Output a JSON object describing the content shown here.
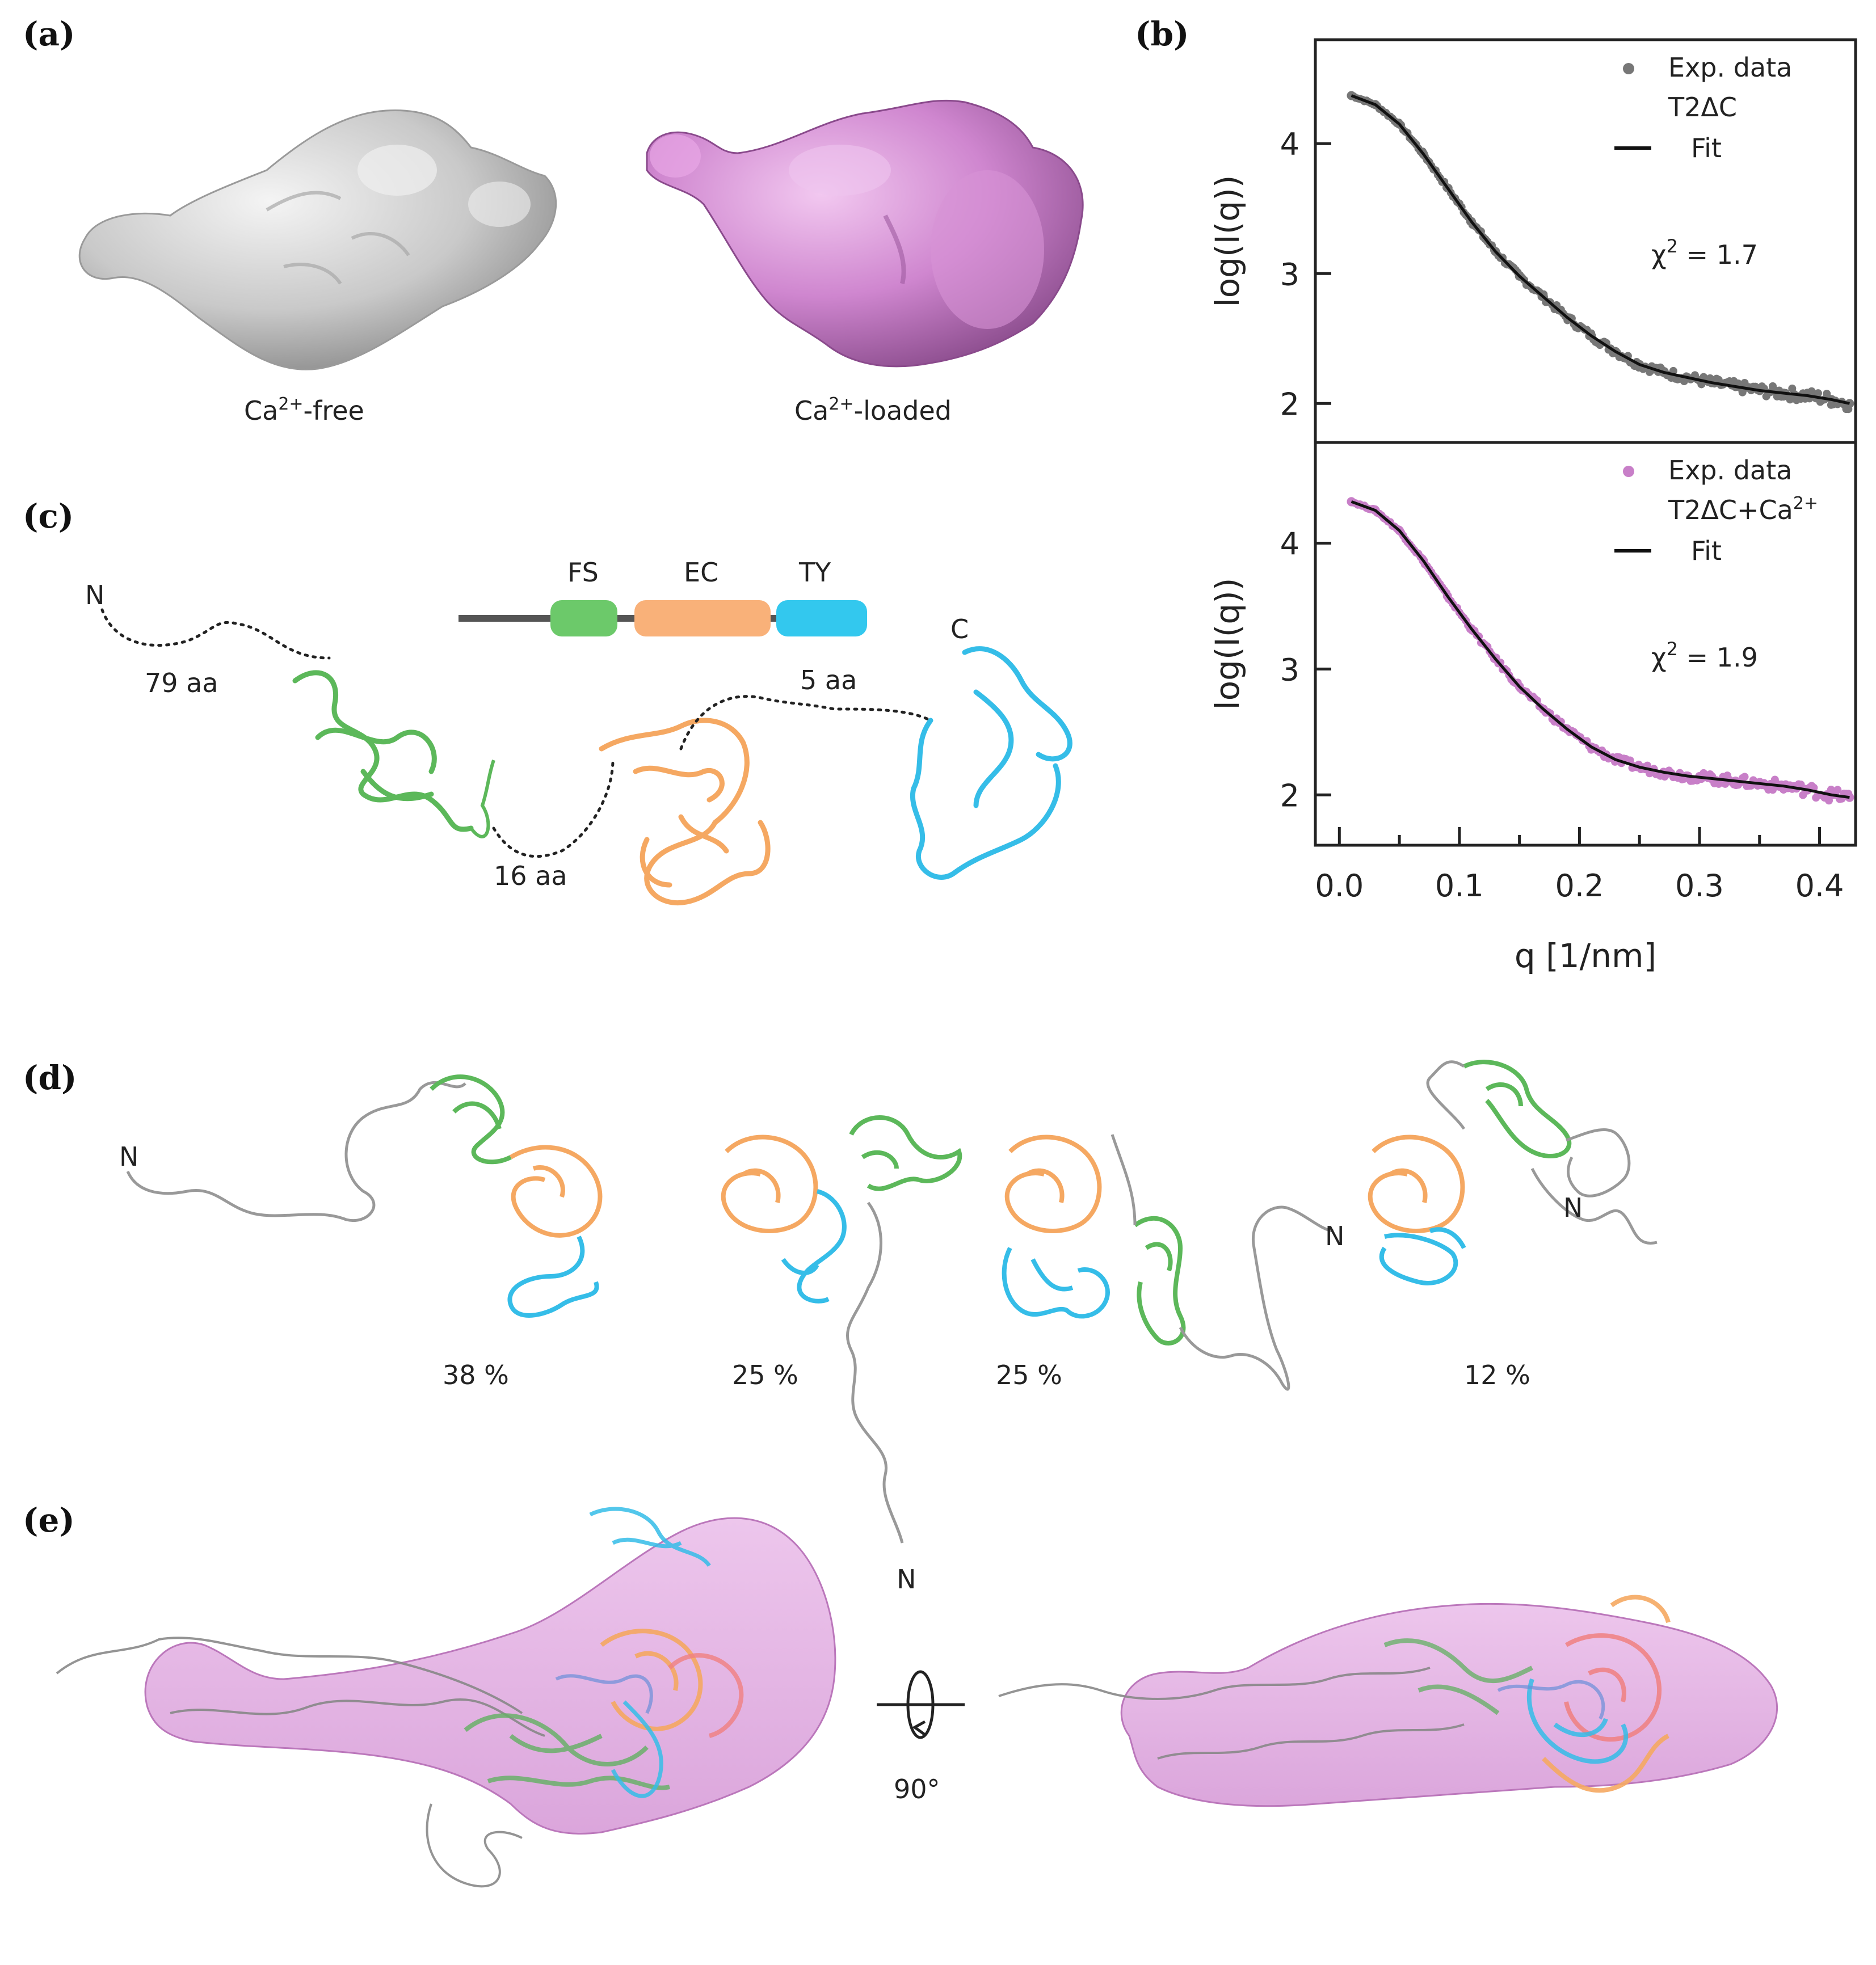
{
  "panels": {
    "a": {
      "letter": "(a)",
      "free_label": "Ca2+-free",
      "free_base": "Ca",
      "free_sup": "2+",
      "free_rest": "-free",
      "loaded_base": "Ca",
      "loaded_sup": "2+",
      "loaded_rest": "-loaded"
    },
    "b": {
      "letter": "(b)"
    },
    "c": {
      "letter": "(c)",
      "n_term": "N",
      "c_term": "C",
      "linker1": "79 aa",
      "linker2": "16 aa",
      "linker3": "5 aa",
      "domains": [
        {
          "name": "FS",
          "color": "#6cc96a"
        },
        {
          "name": "EC",
          "color": "#f9b179"
        },
        {
          "name": "TY",
          "color": "#33c8ee"
        }
      ]
    },
    "d": {
      "letter": "(d)",
      "n_labels": [
        "N",
        "N",
        "N",
        "N"
      ],
      "percentages": [
        "38 %",
        "25 %",
        "25 %",
        "12 %"
      ]
    },
    "e": {
      "letter": "(e)",
      "rotation": "90°"
    }
  },
  "colors": {
    "free_envelope": "#c8c8c8",
    "loaded_envelope": "#c47ec4",
    "free_data": "#777777",
    "loaded_data": "#c87fc8",
    "fit": "#111111",
    "fs": "#5cb85a",
    "ec": "#f5a862",
    "ty": "#35bde8"
  },
  "chart_data": [
    {
      "type": "scatter",
      "title": "",
      "xlabel": "q [1/nm]",
      "ylabel": "log(I(q))",
      "xlim": [
        -0.02,
        0.43
      ],
      "ylim": [
        1.7,
        4.8
      ],
      "xticks": [
        0.0,
        0.1,
        0.2,
        0.3,
        0.4
      ],
      "xtick_labels": [
        "0.0",
        "0.1",
        "0.2",
        "0.3",
        "0.4"
      ],
      "yticks": [
        2,
        3,
        4
      ],
      "ytick_labels": [
        "2",
        "3",
        "4"
      ],
      "legend_position": "top-right",
      "chi2": "χ² = 1.7",
      "chi2_base": "χ",
      "chi2_sup": "2",
      "chi2_val": " = 1.7",
      "series": [
        {
          "name": "Exp. data T2ΔC",
          "legend_line1": "Exp. data",
          "legend_line2": "T2ΔC",
          "style": "points",
          "x": [
            0.01,
            0.03,
            0.05,
            0.07,
            0.09,
            0.11,
            0.13,
            0.15,
            0.17,
            0.19,
            0.21,
            0.23,
            0.25,
            0.27,
            0.29,
            0.31,
            0.33,
            0.35,
            0.37,
            0.39,
            0.41,
            0.425
          ],
          "y": [
            4.37,
            4.3,
            4.15,
            3.92,
            3.66,
            3.4,
            3.17,
            2.98,
            2.82,
            2.66,
            2.52,
            2.4,
            2.3,
            2.24,
            2.2,
            2.16,
            2.13,
            2.1,
            2.08,
            2.06,
            2.03,
            2.0
          ]
        },
        {
          "name": "Fit",
          "style": "line",
          "x": [
            0.01,
            0.03,
            0.05,
            0.07,
            0.09,
            0.11,
            0.13,
            0.15,
            0.17,
            0.19,
            0.21,
            0.23,
            0.25,
            0.27,
            0.29,
            0.31,
            0.33,
            0.35,
            0.37,
            0.39,
            0.41,
            0.425
          ],
          "y": [
            4.37,
            4.3,
            4.15,
            3.92,
            3.66,
            3.4,
            3.17,
            2.98,
            2.82,
            2.66,
            2.52,
            2.4,
            2.3,
            2.24,
            2.2,
            2.16,
            2.13,
            2.1,
            2.08,
            2.06,
            2.03,
            2.0
          ]
        }
      ]
    },
    {
      "type": "scatter",
      "title": "",
      "xlabel": "q [1/nm]",
      "ylabel": "log(I(q))",
      "xlim": [
        -0.02,
        0.43
      ],
      "ylim": [
        1.6,
        4.8
      ],
      "xticks": [
        0.0,
        0.1,
        0.2,
        0.3,
        0.4
      ],
      "xtick_labels": [
        "0.0",
        "0.1",
        "0.2",
        "0.3",
        "0.4"
      ],
      "yticks": [
        2,
        3,
        4
      ],
      "ytick_labels": [
        "2",
        "3",
        "4"
      ],
      "legend_position": "top-right",
      "chi2": "χ² = 1.9",
      "chi2_base": "χ",
      "chi2_sup": "2",
      "chi2_val": " = 1.9",
      "series": [
        {
          "name": "Exp. data T2ΔC+Ca2+",
          "legend_line1": "Exp. data",
          "legend_line2": "T2ΔC+Ca",
          "legend_line2_sup": "2+",
          "style": "points",
          "x": [
            0.01,
            0.03,
            0.05,
            0.07,
            0.09,
            0.11,
            0.13,
            0.15,
            0.17,
            0.19,
            0.21,
            0.23,
            0.25,
            0.27,
            0.29,
            0.31,
            0.33,
            0.35,
            0.37,
            0.39,
            0.41,
            0.425
          ],
          "y": [
            4.33,
            4.26,
            4.1,
            3.86,
            3.58,
            3.32,
            3.08,
            2.86,
            2.68,
            2.52,
            2.38,
            2.28,
            2.22,
            2.18,
            2.15,
            2.13,
            2.11,
            2.09,
            2.07,
            2.04,
            2.0,
            1.98
          ]
        },
        {
          "name": "Fit",
          "style": "line",
          "x": [
            0.01,
            0.03,
            0.05,
            0.07,
            0.09,
            0.11,
            0.13,
            0.15,
            0.17,
            0.19,
            0.21,
            0.23,
            0.25,
            0.27,
            0.29,
            0.31,
            0.33,
            0.35,
            0.37,
            0.39,
            0.41,
            0.425
          ],
          "y": [
            4.33,
            4.26,
            4.1,
            3.86,
            3.58,
            3.32,
            3.08,
            2.86,
            2.68,
            2.52,
            2.38,
            2.28,
            2.22,
            2.18,
            2.15,
            2.13,
            2.11,
            2.09,
            2.07,
            2.04,
            2.0,
            1.98
          ]
        }
      ]
    }
  ]
}
